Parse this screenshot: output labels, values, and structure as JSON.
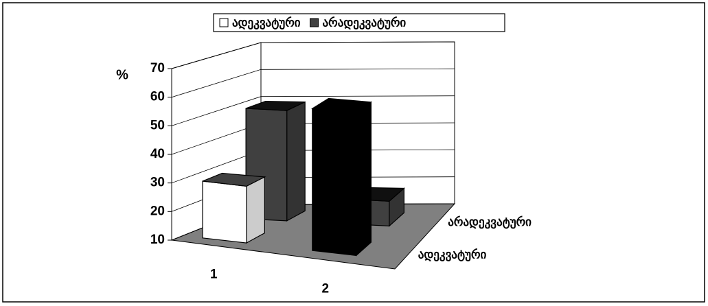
{
  "chart_data": {
    "type": "bar3d",
    "y_label": "%",
    "categories": [
      "1",
      "2"
    ],
    "series": [
      {
        "name": "ადეკვატური",
        "color": "#ffffff",
        "colors": [
          "#ffffff",
          "#000000"
        ],
        "values": [
          30,
          60
        ]
      },
      {
        "name": "არადეკვატური",
        "color": "#404040",
        "colors": [
          "#404040",
          "#404040"
        ],
        "values": [
          50,
          19
        ]
      }
    ],
    "ylim": [
      10,
      70
    ],
    "yticks": [
      10,
      20,
      30,
      40,
      50,
      60,
      70
    ],
    "grid": true,
    "legend": "top"
  }
}
